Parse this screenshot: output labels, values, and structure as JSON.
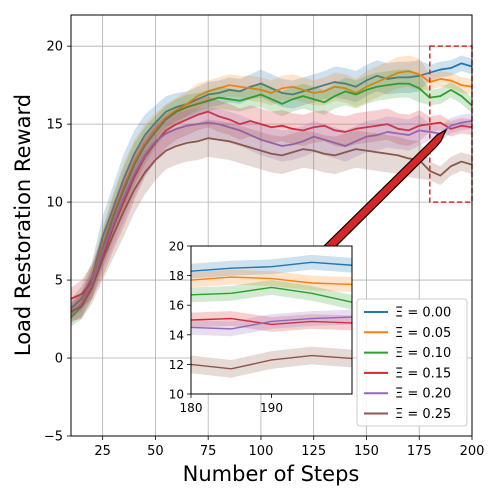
{
  "chart_data": {
    "type": "line",
    "xlabel": "Number of Steps",
    "ylabel": "Load Restoration Reward",
    "xlim": [
      10,
      200
    ],
    "ylim": [
      -5,
      22
    ],
    "xticks": [
      25,
      50,
      75,
      100,
      125,
      150,
      175,
      200
    ],
    "yticks": [
      -5,
      0,
      5,
      10,
      15,
      20
    ],
    "grid": true,
    "legend_location": "lower-right",
    "highlight_box": {
      "x": [
        180,
        200
      ],
      "y": [
        10,
        20
      ],
      "color": "#d62728"
    },
    "series": [
      {
        "name": "Ξ = 0.00",
        "color": "#1f77b4",
        "x": [
          10,
          15,
          20,
          25,
          30,
          35,
          40,
          45,
          50,
          55,
          60,
          65,
          70,
          75,
          80,
          85,
          90,
          95,
          100,
          105,
          110,
          115,
          120,
          125,
          130,
          135,
          140,
          145,
          150,
          155,
          160,
          165,
          170,
          175,
          180,
          185,
          190,
          195,
          200
        ],
        "values": [
          3.2,
          3.8,
          5.2,
          7.8,
          9.6,
          11.5,
          13.1,
          14.3,
          15.1,
          15.8,
          16.1,
          16.3,
          16.6,
          16.9,
          17.0,
          17.2,
          17.1,
          17.4,
          17.6,
          17.3,
          17.0,
          16.9,
          17.1,
          17.3,
          17.5,
          17.7,
          17.6,
          17.4,
          17.8,
          18.1,
          17.9,
          18.0,
          18.0,
          18.1,
          18.3,
          18.5,
          18.6,
          18.9,
          18.7
        ],
        "spread": [
          0.6,
          0.8,
          1.0,
          1.3,
          1.5,
          1.6,
          1.5,
          1.3,
          1.1,
          1.0,
          0.9,
          0.8,
          0.8,
          0.8,
          0.8,
          0.8,
          0.8,
          0.8,
          0.9,
          0.9,
          0.9,
          0.9,
          0.9,
          0.9,
          0.9,
          1.0,
          1.0,
          1.0,
          1.0,
          1.0,
          1.0,
          1.0,
          1.0,
          1.0,
          0.5,
          0.5,
          0.5,
          0.5,
          0.5
        ]
      },
      {
        "name": "Ξ = 0.05",
        "color": "#ff7f0e",
        "x": [
          10,
          15,
          20,
          25,
          30,
          35,
          40,
          45,
          50,
          55,
          60,
          65,
          70,
          75,
          80,
          85,
          90,
          95,
          100,
          105,
          110,
          115,
          120,
          125,
          130,
          135,
          140,
          145,
          150,
          155,
          160,
          165,
          170,
          175,
          180,
          185,
          190,
          195,
          200
        ],
        "values": [
          2.8,
          3.5,
          5.0,
          7.2,
          9.2,
          11.0,
          12.6,
          13.8,
          14.7,
          15.4,
          15.9,
          16.3,
          16.8,
          17.1,
          17.3,
          17.5,
          17.4,
          17.3,
          17.2,
          17.0,
          17.3,
          17.4,
          17.2,
          17.0,
          17.1,
          17.4,
          17.3,
          17.0,
          17.4,
          17.7,
          18.0,
          18.3,
          18.4,
          18.2,
          17.7,
          17.9,
          17.8,
          17.5,
          17.4
        ],
        "spread": [
          0.6,
          0.8,
          1.0,
          1.2,
          1.4,
          1.5,
          1.4,
          1.2,
          1.0,
          0.9,
          0.8,
          0.8,
          0.8,
          0.7,
          0.7,
          0.7,
          0.7,
          0.8,
          0.8,
          0.8,
          0.8,
          0.8,
          0.8,
          0.8,
          0.9,
          0.9,
          0.9,
          0.9,
          1.0,
          1.0,
          1.0,
          1.0,
          1.0,
          1.0,
          0.5,
          0.5,
          0.5,
          0.5,
          0.5
        ]
      },
      {
        "name": "Ξ = 0.10",
        "color": "#2ca02c",
        "x": [
          10,
          15,
          20,
          25,
          30,
          35,
          40,
          45,
          50,
          55,
          60,
          65,
          70,
          75,
          80,
          85,
          90,
          95,
          100,
          105,
          110,
          115,
          120,
          125,
          130,
          135,
          140,
          145,
          150,
          155,
          160,
          165,
          170,
          175,
          180,
          185,
          190,
          195,
          200
        ],
        "values": [
          2.6,
          3.3,
          4.8,
          7.0,
          9.0,
          10.8,
          12.4,
          13.6,
          14.5,
          15.3,
          15.8,
          16.1,
          16.3,
          16.5,
          16.7,
          16.6,
          16.5,
          16.7,
          16.9,
          16.6,
          16.3,
          16.6,
          16.8,
          16.6,
          16.4,
          16.8,
          17.1,
          16.9,
          17.2,
          17.4,
          17.5,
          17.6,
          17.6,
          17.3,
          16.7,
          16.8,
          17.2,
          16.8,
          16.2
        ],
        "spread": [
          0.6,
          0.8,
          1.0,
          1.2,
          1.4,
          1.5,
          1.4,
          1.2,
          1.0,
          0.9,
          0.8,
          0.8,
          0.7,
          0.7,
          0.7,
          0.7,
          0.7,
          0.7,
          0.8,
          0.8,
          0.8,
          0.8,
          0.8,
          0.8,
          0.8,
          0.8,
          0.9,
          0.9,
          0.9,
          0.9,
          0.9,
          0.9,
          0.9,
          0.9,
          0.5,
          0.5,
          0.5,
          0.5,
          0.5
        ]
      },
      {
        "name": "Ξ = 0.15",
        "color": "#d62728",
        "x": [
          10,
          15,
          20,
          25,
          30,
          35,
          40,
          45,
          50,
          55,
          60,
          65,
          70,
          75,
          80,
          85,
          90,
          95,
          100,
          105,
          110,
          115,
          120,
          125,
          130,
          135,
          140,
          145,
          150,
          155,
          160,
          165,
          170,
          175,
          180,
          185,
          190,
          195,
          200
        ],
        "values": [
          3.8,
          4.1,
          4.9,
          6.5,
          8.4,
          10.0,
          11.6,
          12.9,
          13.8,
          14.6,
          15.0,
          15.3,
          15.6,
          15.8,
          15.5,
          15.3,
          15.0,
          15.2,
          15.0,
          14.8,
          14.9,
          14.7,
          14.6,
          14.8,
          14.9,
          14.6,
          14.5,
          14.7,
          14.8,
          14.9,
          15.0,
          14.7,
          14.6,
          14.9,
          15.0,
          15.1,
          14.7,
          14.9,
          14.8
        ],
        "spread": [
          0.7,
          0.9,
          1.1,
          1.3,
          1.5,
          1.6,
          1.5,
          1.3,
          1.2,
          1.1,
          1.0,
          1.0,
          1.0,
          1.0,
          1.0,
          1.0,
          1.0,
          1.0,
          1.0,
          1.0,
          1.0,
          1.0,
          1.0,
          1.0,
          1.0,
          1.0,
          1.0,
          1.0,
          1.0,
          1.0,
          1.0,
          1.0,
          1.0,
          1.0,
          0.5,
          0.5,
          0.5,
          0.5,
          0.5
        ]
      },
      {
        "name": "Ξ = 0.20",
        "color": "#9467bd",
        "x": [
          10,
          15,
          20,
          25,
          30,
          35,
          40,
          45,
          50,
          55,
          60,
          65,
          70,
          75,
          80,
          85,
          90,
          95,
          100,
          105,
          110,
          115,
          120,
          125,
          130,
          135,
          140,
          145,
          150,
          155,
          160,
          165,
          170,
          175,
          180,
          185,
          190,
          195,
          200
        ],
        "values": [
          2.9,
          3.4,
          4.8,
          6.8,
          8.6,
          10.3,
          11.8,
          13.0,
          13.9,
          14.4,
          14.7,
          14.9,
          15.0,
          15.1,
          15.0,
          14.8,
          14.6,
          14.3,
          14.0,
          13.8,
          13.6,
          13.7,
          13.9,
          14.2,
          14.0,
          13.8,
          13.6,
          13.9,
          14.2,
          14.3,
          14.5,
          14.4,
          14.3,
          14.6,
          14.5,
          14.4,
          14.9,
          15.1,
          15.2
        ],
        "spread": [
          0.6,
          0.8,
          1.0,
          1.2,
          1.4,
          1.5,
          1.4,
          1.3,
          1.2,
          1.1,
          1.0,
          1.0,
          1.0,
          1.0,
          1.0,
          1.0,
          1.0,
          1.0,
          1.0,
          1.0,
          1.0,
          1.0,
          1.0,
          1.0,
          1.0,
          1.0,
          1.0,
          1.0,
          1.0,
          1.0,
          1.0,
          1.0,
          1.0,
          1.0,
          0.5,
          0.5,
          0.5,
          0.5,
          0.5
        ]
      },
      {
        "name": "Ξ = 0.25",
        "color": "#8c564b",
        "x": [
          10,
          15,
          20,
          25,
          30,
          35,
          40,
          45,
          50,
          55,
          60,
          65,
          70,
          75,
          80,
          85,
          90,
          95,
          100,
          105,
          110,
          115,
          120,
          125,
          130,
          135,
          140,
          145,
          150,
          155,
          160,
          165,
          170,
          175,
          180,
          185,
          190,
          195,
          200
        ],
        "values": [
          3.0,
          3.3,
          4.5,
          6.3,
          7.9,
          9.4,
          10.8,
          11.9,
          12.7,
          13.3,
          13.6,
          13.8,
          13.9,
          14.1,
          14.0,
          13.9,
          13.7,
          13.5,
          13.3,
          13.1,
          13.0,
          13.2,
          13.4,
          13.3,
          13.1,
          13.0,
          13.2,
          13.4,
          13.3,
          13.2,
          13.1,
          13.0,
          12.8,
          12.7,
          12.0,
          11.7,
          12.3,
          12.6,
          12.4
        ],
        "spread": [
          0.6,
          0.8,
          1.0,
          1.3,
          1.5,
          1.6,
          1.5,
          1.4,
          1.3,
          1.2,
          1.2,
          1.2,
          1.2,
          1.2,
          1.2,
          1.2,
          1.2,
          1.2,
          1.2,
          1.2,
          1.2,
          1.2,
          1.2,
          1.2,
          1.2,
          1.2,
          1.2,
          1.2,
          1.2,
          1.2,
          1.2,
          1.2,
          1.2,
          1.2,
          0.6,
          0.6,
          0.6,
          0.6,
          0.6
        ]
      }
    ],
    "inset": {
      "xlim": [
        180,
        200
      ],
      "ylim": [
        10,
        20
      ],
      "xticks": [
        180,
        190
      ],
      "yticks": [
        10,
        12,
        14,
        16,
        18,
        20
      ]
    }
  }
}
